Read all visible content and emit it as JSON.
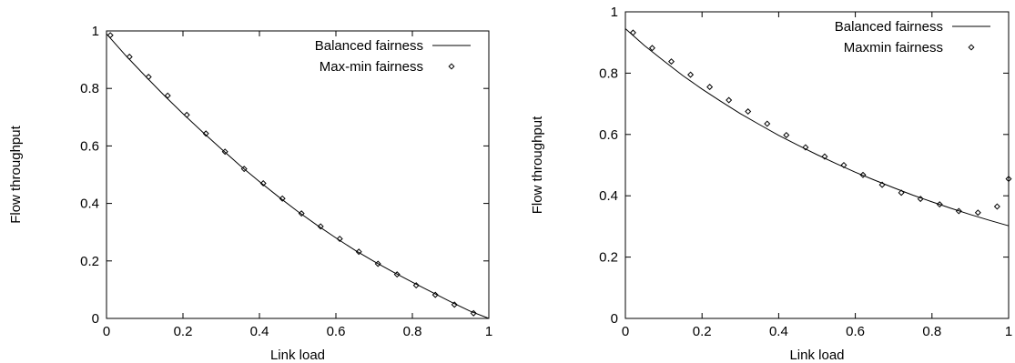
{
  "chart_data": [
    {
      "type": "line",
      "xlabel": "Link load",
      "ylabel": "Flow throughput",
      "xlim": [
        0,
        1
      ],
      "ylim": [
        0,
        1
      ],
      "xticks": [
        "0",
        "0.2",
        "0.4",
        "0.6",
        "0.8",
        "1"
      ],
      "yticks": [
        "0",
        "0.2",
        "0.4",
        "0.6",
        "0.8",
        "1"
      ],
      "legend_position": "top-right",
      "grid": false,
      "series": [
        {
          "name": "Balanced fairness",
          "style": "line",
          "x": [
            0,
            0.05,
            0.1,
            0.15,
            0.2,
            0.25,
            0.3,
            0.35,
            0.4,
            0.45,
            0.5,
            0.55,
            0.6,
            0.65,
            0.7,
            0.75,
            0.8,
            0.85,
            0.9,
            0.95,
            1.0
          ],
          "y": [
            0.99,
            0.915,
            0.845,
            0.777,
            0.712,
            0.65,
            0.59,
            0.531,
            0.476,
            0.423,
            0.372,
            0.325,
            0.28,
            0.237,
            0.198,
            0.161,
            0.126,
            0.092,
            0.058,
            0.026,
            0.0
          ]
        },
        {
          "name": "Max-min fairness",
          "style": "marker",
          "x": [
            0.01,
            0.06,
            0.11,
            0.16,
            0.21,
            0.26,
            0.31,
            0.36,
            0.41,
            0.46,
            0.51,
            0.56,
            0.61,
            0.66,
            0.71,
            0.76,
            0.81,
            0.86,
            0.91,
            0.96
          ],
          "y": [
            0.985,
            0.91,
            0.84,
            0.775,
            0.708,
            0.643,
            0.58,
            0.52,
            0.47,
            0.417,
            0.365,
            0.32,
            0.277,
            0.232,
            0.19,
            0.153,
            0.115,
            0.082,
            0.048,
            0.018
          ]
        }
      ]
    },
    {
      "type": "line",
      "xlabel": "Link load",
      "ylabel": "Flow throughput",
      "xlim": [
        0,
        1
      ],
      "ylim": [
        0,
        1
      ],
      "xticks": [
        "0",
        "0.2",
        "0.4",
        "0.6",
        "0.8",
        "1"
      ],
      "yticks": [
        "0",
        "0.2",
        "0.4",
        "0.6",
        "0.8",
        "1"
      ],
      "legend_position": "top-right",
      "grid": false,
      "series": [
        {
          "name": "Balanced fairness",
          "style": "line",
          "x": [
            0,
            0.05,
            0.1,
            0.15,
            0.2,
            0.25,
            0.3,
            0.35,
            0.4,
            0.45,
            0.5,
            0.55,
            0.6,
            0.65,
            0.7,
            0.75,
            0.8,
            0.85,
            0.9,
            0.95,
            1.0
          ],
          "y": [
            0.945,
            0.89,
            0.84,
            0.792,
            0.748,
            0.707,
            0.668,
            0.632,
            0.597,
            0.565,
            0.534,
            0.505,
            0.477,
            0.451,
            0.426,
            0.402,
            0.38,
            0.359,
            0.339,
            0.32,
            0.302
          ]
        },
        {
          "name": "Maxmin fairness",
          "style": "marker",
          "x": [
            0.02,
            0.07,
            0.12,
            0.17,
            0.22,
            0.27,
            0.32,
            0.37,
            0.42,
            0.47,
            0.52,
            0.57,
            0.62,
            0.67,
            0.72,
            0.77,
            0.82,
            0.87,
            0.92,
            0.97,
            1.0
          ],
          "y": [
            0.932,
            0.882,
            0.838,
            0.795,
            0.755,
            0.712,
            0.675,
            0.635,
            0.598,
            0.558,
            0.528,
            0.5,
            0.468,
            0.436,
            0.41,
            0.39,
            0.372,
            0.35,
            0.345,
            0.365,
            0.455
          ]
        }
      ]
    }
  ]
}
